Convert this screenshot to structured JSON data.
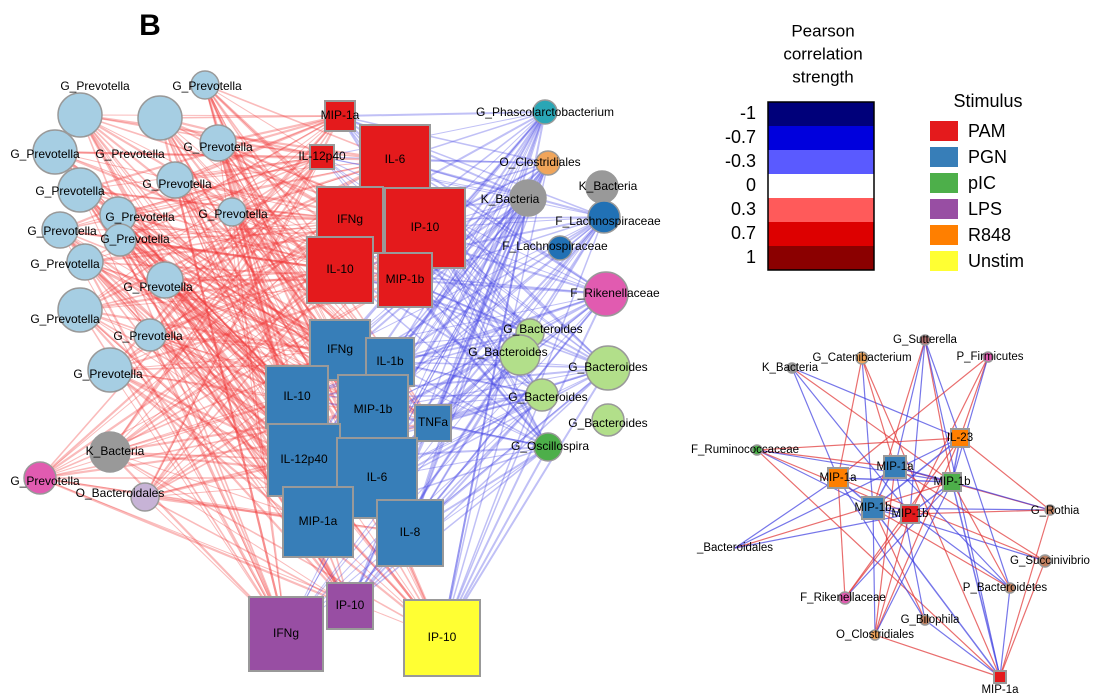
{
  "panel_label": "B",
  "legend_correlation": {
    "title_lines": [
      "Pearson",
      "correlation",
      "strength"
    ],
    "levels": [
      {
        "label": "-1",
        "color": "#00007a"
      },
      {
        "label": "-0.7",
        "color": "#0000dd"
      },
      {
        "label": "-0.3",
        "color": "#5a5aff"
      },
      {
        "label": "0",
        "color": "#ffffff"
      },
      {
        "label": "0.3",
        "color": "#ff5a5a"
      },
      {
        "label": "0.7",
        "color": "#dd0000"
      },
      {
        "label": "1",
        "color": "#8b0000"
      }
    ]
  },
  "legend_stimulus": {
    "title": "Stimulus",
    "items": [
      {
        "label": "PAM",
        "color": "#e41a1c"
      },
      {
        "label": "PGN",
        "color": "#377eb8"
      },
      {
        "label": "pIC",
        "color": "#4daf4a"
      },
      {
        "label": "LPS",
        "color": "#984ea3"
      },
      {
        "label": "R848",
        "color": "#ff7f00"
      },
      {
        "label": "Unstim",
        "color": "#ffff33"
      }
    ]
  },
  "network_left": {
    "nodes": [
      {
        "label": "G_Prevotella",
        "color": "#a6cee3",
        "shape": "circle"
      },
      {
        "label": "G_Prevotella",
        "color": "#a6cee3",
        "shape": "circle"
      },
      {
        "label": "G_Prevotella",
        "color": "#a6cee3",
        "shape": "circle"
      },
      {
        "label": "G_Prevotella",
        "color": "#a6cee3",
        "shape": "circle"
      },
      {
        "label": "G_Prevotella",
        "color": "#a6cee3",
        "shape": "circle"
      },
      {
        "label": "G_Prevotella",
        "color": "#a6cee3",
        "shape": "circle"
      },
      {
        "label": "G_Prevotella",
        "color": "#a6cee3",
        "shape": "circle"
      },
      {
        "label": "G_Prevotella",
        "color": "#a6cee3",
        "shape": "circle"
      },
      {
        "label": "G_Prevotella",
        "color": "#a6cee3",
        "shape": "circle"
      },
      {
        "label": "G_Prevotella",
        "color": "#a6cee3",
        "shape": "circle"
      },
      {
        "label": "G_Prevotella",
        "color": "#a6cee3",
        "shape": "circle"
      },
      {
        "label": "G_Prevotella",
        "color": "#a6cee3",
        "shape": "circle"
      },
      {
        "label": "G_Prevotella",
        "color": "#a6cee3",
        "shape": "circle"
      },
      {
        "label": "G_Prevotella",
        "color": "#a6cee3",
        "shape": "circle"
      },
      {
        "label": "G_Prevotella",
        "color": "#a6cee3",
        "shape": "circle"
      },
      {
        "label": "G_Prevotella",
        "color": "#a6cee3",
        "shape": "circle"
      },
      {
        "label": "G_Prevotella",
        "color": "#e15bb0",
        "shape": "circle"
      },
      {
        "label": "K_Bacteria",
        "color": "#999999",
        "shape": "circle"
      },
      {
        "label": "O_Bacteroidales",
        "color": "#c7b3d6",
        "shape": "circle"
      },
      {
        "label": "G_Phascolarctobacterium",
        "color": "#2aa6b5",
        "shape": "circle"
      },
      {
        "label": "O_Clostridiales",
        "color": "#f0a55a",
        "shape": "circle"
      },
      {
        "label": "K_Bacteria",
        "color": "#999999",
        "shape": "circle"
      },
      {
        "label": "K_Bacteria",
        "color": "#999999",
        "shape": "circle"
      },
      {
        "label": "F_Lachnospiraceae",
        "color": "#2171b5",
        "shape": "circle"
      },
      {
        "label": "F_Lachnospiraceae",
        "color": "#2171b5",
        "shape": "circle"
      },
      {
        "label": "F_Rikenellaceae",
        "color": "#e15bb0",
        "shape": "circle"
      },
      {
        "label": "G_Bacteroides",
        "color": "#b2df8a",
        "shape": "circle"
      },
      {
        "label": "G_Bacteroides",
        "color": "#b2df8a",
        "shape": "circle"
      },
      {
        "label": "G_Bacteroides",
        "color": "#b2df8a",
        "shape": "circle"
      },
      {
        "label": "G_Bacteroides",
        "color": "#b2df8a",
        "shape": "circle"
      },
      {
        "label": "G_Bacteroides",
        "color": "#b2df8a",
        "shape": "circle"
      },
      {
        "label": "G_Oscillospira",
        "color": "#4daf4a",
        "shape": "circle"
      },
      {
        "label": "MIP-1a",
        "color": "#e41a1c",
        "shape": "square"
      },
      {
        "label": "IL-12p40",
        "color": "#e41a1c",
        "shape": "square"
      },
      {
        "label": "IL-6",
        "color": "#e41a1c",
        "shape": "square"
      },
      {
        "label": "IFNg",
        "color": "#e41a1c",
        "shape": "square"
      },
      {
        "label": "IP-10",
        "color": "#e41a1c",
        "shape": "square"
      },
      {
        "label": "IL-10",
        "color": "#e41a1c",
        "shape": "square"
      },
      {
        "label": "MIP-1b",
        "color": "#e41a1c",
        "shape": "square"
      },
      {
        "label": "IFNg",
        "color": "#377eb8",
        "shape": "square"
      },
      {
        "label": "IL-1b",
        "color": "#377eb8",
        "shape": "square"
      },
      {
        "label": "IL-10",
        "color": "#377eb8",
        "shape": "square"
      },
      {
        "label": "MIP-1b",
        "color": "#377eb8",
        "shape": "square"
      },
      {
        "label": "TNFa",
        "color": "#377eb8",
        "shape": "square"
      },
      {
        "label": "IL-12p40",
        "color": "#377eb8",
        "shape": "square"
      },
      {
        "label": "IL-6",
        "color": "#377eb8",
        "shape": "square"
      },
      {
        "label": "MIP-1a",
        "color": "#377eb8",
        "shape": "square"
      },
      {
        "label": "IL-8",
        "color": "#377eb8",
        "shape": "square"
      },
      {
        "label": "IFNg",
        "color": "#984ea3",
        "shape": "square"
      },
      {
        "label": "IP-10",
        "color": "#984ea3",
        "shape": "square"
      },
      {
        "label": "IP-10",
        "color": "#ffff33",
        "shape": "square"
      }
    ]
  },
  "network_right": {
    "nodes": [
      {
        "label": "K_Bacteria",
        "color": "#999999",
        "shape": "circle"
      },
      {
        "label": "G_Catenibacterium",
        "color": "#f0a55a",
        "shape": "circle"
      },
      {
        "label": "G_Sutterella",
        "color": "#b07070",
        "shape": "circle"
      },
      {
        "label": "P_Firmicutes",
        "color": "#e15bb0",
        "shape": "circle"
      },
      {
        "label": "IL-23",
        "color": "#ff7f00",
        "shape": "square"
      },
      {
        "label": "F_Ruminococcaceae",
        "color": "#4daf4a",
        "shape": "circle"
      },
      {
        "label": "MIP-1a",
        "color": "#377eb8",
        "shape": "square"
      },
      {
        "label": "MIP-1b",
        "color": "#4daf4a",
        "shape": "square"
      },
      {
        "label": "MIP-1a",
        "color": "#ff7f00",
        "shape": "square"
      },
      {
        "label": "MIP-1b",
        "color": "#377eb8",
        "shape": "square"
      },
      {
        "label": "MIP-1b",
        "color": "#e41a1c",
        "shape": "square"
      },
      {
        "label": "G_Rothia",
        "color": "#c08060",
        "shape": "circle"
      },
      {
        "label": "_Bacteroidales",
        "color": "#c7b3d6",
        "shape": "circle"
      },
      {
        "label": "G_Succinivibrio",
        "color": "#c08060",
        "shape": "circle"
      },
      {
        "label": "P_Bacteroidetes",
        "color": "#c08060",
        "shape": "circle"
      },
      {
        "label": "F_Rikenellaceae",
        "color": "#e15bb0",
        "shape": "circle"
      },
      {
        "label": "G_Bilophila",
        "color": "#c08060",
        "shape": "circle"
      },
      {
        "label": "O_Clostridiales",
        "color": "#f0a55a",
        "shape": "circle"
      },
      {
        "label": "MIP-1a",
        "color": "#e41a1c",
        "shape": "square"
      }
    ]
  }
}
